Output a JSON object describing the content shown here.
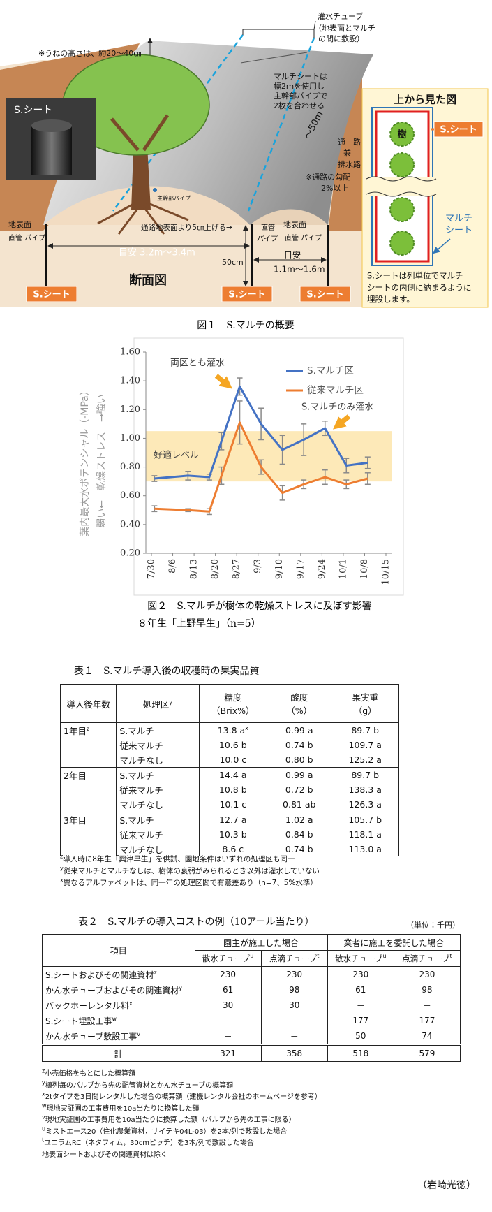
{
  "figure1": {
    "tube_note": [
      "灌水チューブ",
      "（地表面とマルチ",
      "の間に敷設）"
    ],
    "ridge_height_note": "※うねの高さは、約20～40㎝",
    "mulch_note": [
      "マルチシートは",
      "幅2ｍを使用し",
      "主幹部パイプで",
      "2枚を合わせる"
    ],
    "photo_label": "S.シート",
    "length": "～50m",
    "path_note": [
      "通　路",
      "兼",
      "排水路"
    ],
    "slope_note": [
      "※通路の勾配",
      "2%以上"
    ],
    "main_pipe": "主幹部パイプ",
    "ground_left": "地表面",
    "pipe_left": "直管 パイプ",
    "raise_note": "通路地表面より5㎝上げる→",
    "pipe_mid": [
      "直管",
      "パイプ"
    ],
    "ground_right": "地表面",
    "pipe_right": "直管 パイプ",
    "width_row": "目安 3.2m～3.4m",
    "depth": "50cm",
    "width_path": [
      "目安",
      "1.1m～1.6m"
    ],
    "section_title": "断面図",
    "sheet_tags": [
      "S.シート",
      "S.シート",
      "S.シート"
    ],
    "top_view": {
      "title": "上から見た図",
      "tree": "樹",
      "sheet": "S.シート",
      "mulch": [
        "マルチ",
        "シート"
      ],
      "note": [
        "S.シートは列単位でマルチ",
        "シートの内側に納まるように",
        "埋設します。"
      ]
    },
    "caption": "図１　S.マルチの概要"
  },
  "chart_data": {
    "type": "line",
    "ylabel": [
      "葉内最大水ポテンシャル（-MPa）",
      "弱い←　乾燥ストレス　→強い"
    ],
    "x": [
      "7/31",
      "8/11",
      "8/18",
      "8/22",
      "8/28",
      "9/4",
      "9/11",
      "9/18",
      "9/25",
      "10/2",
      "10/9"
    ],
    "xticks": [
      "7/30",
      "8/6",
      "8/13",
      "8/20",
      "8/27",
      "9/3",
      "9/10",
      "9/17",
      "9/24",
      "10/1",
      "10/8",
      "10/15"
    ],
    "ylim": [
      0.2,
      1.6
    ],
    "yticks": [
      {
        "value": 0.2,
        "label": "0.20"
      },
      {
        "value": 0.4,
        "label": "0.40"
      },
      {
        "value": 0.6,
        "label": "0.60"
      },
      {
        "value": 0.8,
        "label": "0.80"
      },
      {
        "value": 1.0,
        "label": "1.00"
      },
      {
        "value": 1.2,
        "label": "1.20"
      },
      {
        "value": 1.4,
        "label": "1.40"
      },
      {
        "value": 1.6,
        "label": "1.60"
      }
    ],
    "series": [
      {
        "name": "S.マルチ区",
        "color": "#4472c4",
        "values": [
          0.72,
          0.74,
          0.73,
          0.98,
          1.36,
          1.1,
          0.92,
          0.99,
          1.07,
          0.81,
          0.83
        ],
        "errors": [
          0.02,
          0.03,
          0.02,
          0.06,
          0.06,
          0.11,
          0.1,
          0.11,
          0.05,
          0.05,
          0.04
        ]
      },
      {
        "name": "従来マルチ区",
        "color": "#ed7d31",
        "values": [
          0.51,
          0.5,
          0.49,
          0.74,
          1.11,
          0.8,
          0.62,
          0.68,
          0.73,
          0.68,
          0.72
        ],
        "errors": [
          0.02,
          0.01,
          0.02,
          0.06,
          0.15,
          0.05,
          0.05,
          0.03,
          0.05,
          0.03,
          0.04
        ]
      }
    ],
    "band": {
      "range": [
        0.7,
        1.05
      ],
      "label": "好適レベル",
      "color": "#fde9b8"
    },
    "annotations": [
      "両区とも灌水",
      "S.マルチのみ灌水"
    ],
    "legend": "top-right",
    "caption": [
      "図２　S.マルチが樹体の乾燥ストレスに及ぼす影響",
      "８年生「上野早生」（n=5）"
    ]
  },
  "table1": {
    "title": "表１　S.マルチ導入後の収穫時の果実品質",
    "header": [
      "導入後年数",
      {
        "text": "処理区",
        "sup": "y"
      },
      [
        "糖度",
        "（Brix%）"
      ],
      [
        "酸度",
        "（%）"
      ],
      [
        "果実重",
        "（g）"
      ]
    ],
    "groups": [
      {
        "year": {
          "text": "1年目",
          "sup": "z"
        },
        "rows": [
          [
            "S.マルチ",
            {
              "text": "13.8 a",
              "sup": "x"
            },
            "0.99 a",
            "89.7 b"
          ],
          [
            "従来マルチ",
            "10.6 b",
            "0.74 b",
            "109.7 a"
          ],
          [
            "マルチなし",
            "10.0 c",
            "0.80 b",
            "125.2 a"
          ]
        ]
      },
      {
        "year": "2年目",
        "rows": [
          [
            "S.マルチ",
            "14.4 a",
            "0.99 a",
            "89.7 b"
          ],
          [
            "従来マルチ",
            "10.8 b",
            "0.72 b",
            "138.3 a"
          ],
          [
            "マルチなし",
            "10.1 c",
            "0.81 ab",
            "126.3 a"
          ]
        ]
      },
      {
        "year": "3年目",
        "rows": [
          [
            "S.マルチ",
            "12.7 a",
            "1.02 a",
            "105.7 b"
          ],
          [
            "従来マルチ",
            "10.3 b",
            "0.84 b",
            "118.1 a"
          ],
          [
            "マルチなし",
            "8.6 c",
            "0.74 b",
            "113.0 a"
          ]
        ]
      }
    ],
    "notes": [
      {
        "mark": "z",
        "text": "導入時に8年生「興津早生」を供試、園地条件はいずれの処理区も同一"
      },
      {
        "mark": "y",
        "text": "従来マルチとマルチなしは、樹体の衰弱がみられるとき以外は灌水していない"
      },
      {
        "mark": "x",
        "text": "異なるアルファベットは、同一年の処理区間で有意差あり（n=7、5%水準）"
      }
    ]
  },
  "table2": {
    "title": "表２　S.マルチの導入コストの例（10アール当たり）",
    "unit": "（単位：千円）",
    "header": {
      "item": "項目",
      "groups": [
        "園主が施工した場合",
        "業者に施工を委託した場合"
      ],
      "sub": [
        {
          "text": "散水チューブ",
          "sup": "u"
        },
        {
          "text": "点滴チューブ",
          "sup": "t"
        },
        {
          "text": "散水チューブ",
          "sup": "u"
        },
        {
          "text": "点滴チューブ",
          "sup": "t"
        }
      ]
    },
    "rows": [
      [
        {
          "text": "S.シートおよびその関連資材",
          "sup": "z"
        },
        "230",
        "230",
        "230",
        "230"
      ],
      [
        {
          "text": "かん水チューブおよびその関連資材",
          "sup": "y"
        },
        "61",
        "98",
        "61",
        "98"
      ],
      [
        {
          "text": "バックホーレンタル料",
          "sup": "x"
        },
        "30",
        "30",
        "－",
        "－"
      ],
      [
        {
          "text": "S.シート埋設工事",
          "sup": "w"
        },
        "－",
        "－",
        "177",
        "177"
      ],
      [
        {
          "text": "かん水チューブ敷設工事",
          "sup": "v"
        },
        "－",
        "－",
        "50",
        "74"
      ],
      [
        "計",
        "321",
        "358",
        "518",
        "579"
      ]
    ],
    "notes": [
      {
        "mark": "z",
        "text": "小売価格をもとにした概算額"
      },
      {
        "mark": "y",
        "text": "植列毎のバルブから先の配管資材とかん水チューブの概算額"
      },
      {
        "mark": "x",
        "text": "2tタイプを3日間レンタルした場合の概算額（建機レンタル会社のホームページを参考）"
      },
      {
        "mark": "w",
        "text": "現地実証圃の工事費用を10a当たりに換算した額"
      },
      {
        "mark": "v",
        "text": "現地実証圃の工事費用を10a当たりに換算した額（バルブから先の工事に限る）"
      },
      {
        "mark": "u",
        "text": "ミストエース20（住化農業資材，サイテキ04L-03）を2本/列で敷設した場合"
      },
      {
        "mark": "t",
        "text": "ユニラムRC（ネタフィム，30cmピッチ）を3本/列で敷設した場合"
      },
      {
        "text": "地表面シートおよびその関連資材は除く"
      }
    ]
  },
  "author": "（岩崎光徳）"
}
